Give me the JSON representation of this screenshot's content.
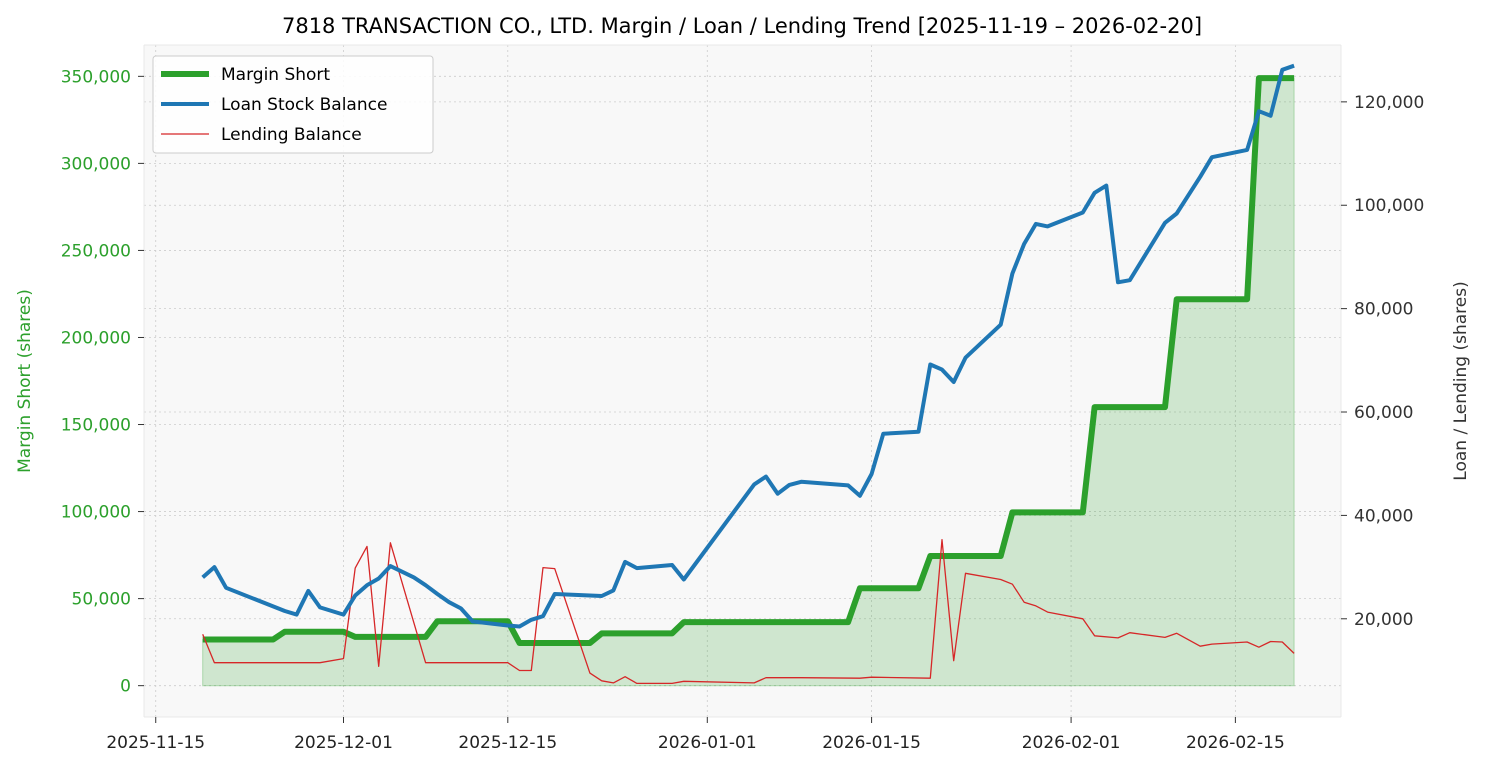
{
  "chart_data": {
    "type": "line",
    "title": "7818 TRANSACTION CO., LTD. Margin / Loan / Lending Trend [2025-11-19 – 2026-02-20]",
    "y_left_label": "Margin Short (shares)",
    "y_right_label": "Loan / Lending (shares)",
    "x_tick_labels": [
      "2025-11-15",
      "2025-12-01",
      "2025-12-15",
      "2026-01-01",
      "2026-01-15",
      "2026-02-01",
      "2026-02-15"
    ],
    "y_left_tick_labels": [
      "0",
      "50,000",
      "100,000",
      "150,000",
      "200,000",
      "250,000",
      "300,000",
      "350,000"
    ],
    "y_right_tick_labels": [
      "20,000",
      "40,000",
      "60,000",
      "80,000",
      "100,000",
      "120,000"
    ],
    "y_left_lim": [
      -18000,
      368000
    ],
    "y_right_lim": [
      1000,
      131000
    ],
    "x_lim": [
      "2025-11-14",
      "2026-02-24"
    ],
    "grid": true,
    "legend_position": "top-left",
    "colors": {
      "margin": "#2ca02c",
      "margin_fill": "#2ca02c",
      "loan": "#1f77b4",
      "lending": "#d62728",
      "left_axis": "#2ca02c",
      "right_axis": "#333333",
      "plot_bg": "#f8f8f8"
    },
    "series": [
      {
        "name": "Margin Short",
        "axis": "left",
        "points": [
          [
            "2025-11-19",
            26500
          ],
          [
            "2025-11-25",
            26500
          ],
          [
            "2025-11-26",
            31000
          ],
          [
            "2025-12-01",
            31000
          ],
          [
            "2025-12-02",
            28000
          ],
          [
            "2025-12-08",
            28000
          ],
          [
            "2025-12-09",
            37000
          ],
          [
            "2025-12-15",
            37000
          ],
          [
            "2025-12-16",
            24500
          ],
          [
            "2025-12-22",
            24500
          ],
          [
            "2025-12-23",
            30000
          ],
          [
            "2025-12-29",
            30000
          ],
          [
            "2025-12-30",
            36500
          ],
          [
            "2026-01-13",
            36500
          ],
          [
            "2026-01-14",
            56000
          ],
          [
            "2026-01-19",
            56000
          ],
          [
            "2026-01-20",
            74500
          ],
          [
            "2026-01-26",
            74500
          ],
          [
            "2026-01-27",
            99500
          ],
          [
            "2026-02-02",
            99500
          ],
          [
            "2026-02-03",
            160000
          ],
          [
            "2026-02-09",
            160000
          ],
          [
            "2026-02-10",
            222000
          ],
          [
            "2026-02-16",
            222000
          ],
          [
            "2026-02-17",
            349000
          ],
          [
            "2026-02-20",
            349000
          ]
        ]
      },
      {
        "name": "Loan Stock Balance",
        "axis": "right",
        "points": [
          [
            "2025-11-19",
            28000
          ],
          [
            "2025-11-20",
            30000
          ],
          [
            "2025-11-21",
            26000
          ],
          [
            "2025-11-26",
            21500
          ],
          [
            "2025-11-27",
            20800
          ],
          [
            "2025-11-28",
            25400
          ],
          [
            "2025-11-29",
            22200
          ],
          [
            "2025-12-01",
            20800
          ],
          [
            "2025-12-02",
            24500
          ],
          [
            "2025-12-03",
            26500
          ],
          [
            "2025-12-04",
            27800
          ],
          [
            "2025-12-05",
            30200
          ],
          [
            "2025-12-07",
            28000
          ],
          [
            "2025-12-08",
            26500
          ],
          [
            "2025-12-09",
            24800
          ],
          [
            "2025-12-10",
            23200
          ],
          [
            "2025-12-11",
            22000
          ],
          [
            "2025-12-12",
            19500
          ],
          [
            "2025-12-15",
            18700
          ],
          [
            "2025-12-16",
            18500
          ],
          [
            "2025-12-17",
            19800
          ],
          [
            "2025-12-18",
            20500
          ],
          [
            "2025-12-19",
            24800
          ],
          [
            "2025-12-22",
            24500
          ],
          [
            "2025-12-23",
            24400
          ],
          [
            "2025-12-24",
            25500
          ],
          [
            "2025-12-25",
            31000
          ],
          [
            "2025-12-26",
            29800
          ],
          [
            "2025-12-29",
            30400
          ],
          [
            "2025-12-30",
            27600
          ],
          [
            "2026-01-05",
            46000
          ],
          [
            "2026-01-06",
            47500
          ],
          [
            "2026-01-07",
            44200
          ],
          [
            "2026-01-08",
            45900
          ],
          [
            "2026-01-09",
            46500
          ],
          [
            "2026-01-13",
            45800
          ],
          [
            "2026-01-14",
            43800
          ],
          [
            "2026-01-15",
            48000
          ],
          [
            "2026-01-16",
            55800
          ],
          [
            "2026-01-19",
            56200
          ],
          [
            "2026-01-20",
            69200
          ],
          [
            "2026-01-21",
            68200
          ],
          [
            "2026-01-22",
            65800
          ],
          [
            "2026-01-23",
            70500
          ],
          [
            "2026-01-26",
            76900
          ],
          [
            "2026-01-27",
            86800
          ],
          [
            "2026-01-28",
            92500
          ],
          [
            "2026-01-29",
            96400
          ],
          [
            "2026-01-30",
            95900
          ],
          [
            "2026-02-02",
            98600
          ],
          [
            "2026-02-03",
            102400
          ],
          [
            "2026-02-04",
            103800
          ],
          [
            "2026-02-05",
            85100
          ],
          [
            "2026-02-06",
            85500
          ],
          [
            "2026-02-09",
            96600
          ],
          [
            "2026-02-10",
            98400
          ],
          [
            "2026-02-12",
            105500
          ],
          [
            "2026-02-13",
            109300
          ],
          [
            "2026-02-16",
            110700
          ],
          [
            "2026-02-17",
            118200
          ],
          [
            "2026-02-18",
            117300
          ],
          [
            "2026-02-19",
            126200
          ],
          [
            "2026-02-20",
            127000
          ]
        ]
      },
      {
        "name": "Lending Balance",
        "axis": "right",
        "points": [
          [
            "2025-11-19",
            17000
          ],
          [
            "2025-11-20",
            11500
          ],
          [
            "2025-11-29",
            11500
          ],
          [
            "2025-12-01",
            12300
          ],
          [
            "2025-12-02",
            29800
          ],
          [
            "2025-12-03",
            34000
          ],
          [
            "2025-12-04",
            10800
          ],
          [
            "2025-12-05",
            34700
          ],
          [
            "2025-12-08",
            11500
          ],
          [
            "2025-12-15",
            11500
          ],
          [
            "2025-12-16",
            10000
          ],
          [
            "2025-12-17",
            10000
          ],
          [
            "2025-12-18",
            29900
          ],
          [
            "2025-12-19",
            29700
          ],
          [
            "2025-12-22",
            9500
          ],
          [
            "2025-12-23",
            8000
          ],
          [
            "2025-12-24",
            7600
          ],
          [
            "2025-12-25",
            8800
          ],
          [
            "2025-12-26",
            7500
          ],
          [
            "2025-12-29",
            7500
          ],
          [
            "2025-12-30",
            7900
          ],
          [
            "2026-01-05",
            7600
          ],
          [
            "2026-01-06",
            8600
          ],
          [
            "2026-01-09",
            8600
          ],
          [
            "2026-01-14",
            8500
          ],
          [
            "2026-01-15",
            8700
          ],
          [
            "2026-01-20",
            8500
          ],
          [
            "2026-01-21",
            35300
          ],
          [
            "2026-01-22",
            11900
          ],
          [
            "2026-01-23",
            28800
          ],
          [
            "2026-01-26",
            27600
          ],
          [
            "2026-01-27",
            26700
          ],
          [
            "2026-01-28",
            23200
          ],
          [
            "2026-01-29",
            22500
          ],
          [
            "2026-01-30",
            21300
          ],
          [
            "2026-02-02",
            20000
          ],
          [
            "2026-02-03",
            16700
          ],
          [
            "2026-02-05",
            16300
          ],
          [
            "2026-02-06",
            17300
          ],
          [
            "2026-02-09",
            16400
          ],
          [
            "2026-02-10",
            17200
          ],
          [
            "2026-02-12",
            14700
          ],
          [
            "2026-02-13",
            15100
          ],
          [
            "2026-02-16",
            15500
          ],
          [
            "2026-02-17",
            14500
          ],
          [
            "2026-02-18",
            15600
          ],
          [
            "2026-02-19",
            15500
          ],
          [
            "2026-02-20",
            13300
          ]
        ]
      }
    ]
  }
}
